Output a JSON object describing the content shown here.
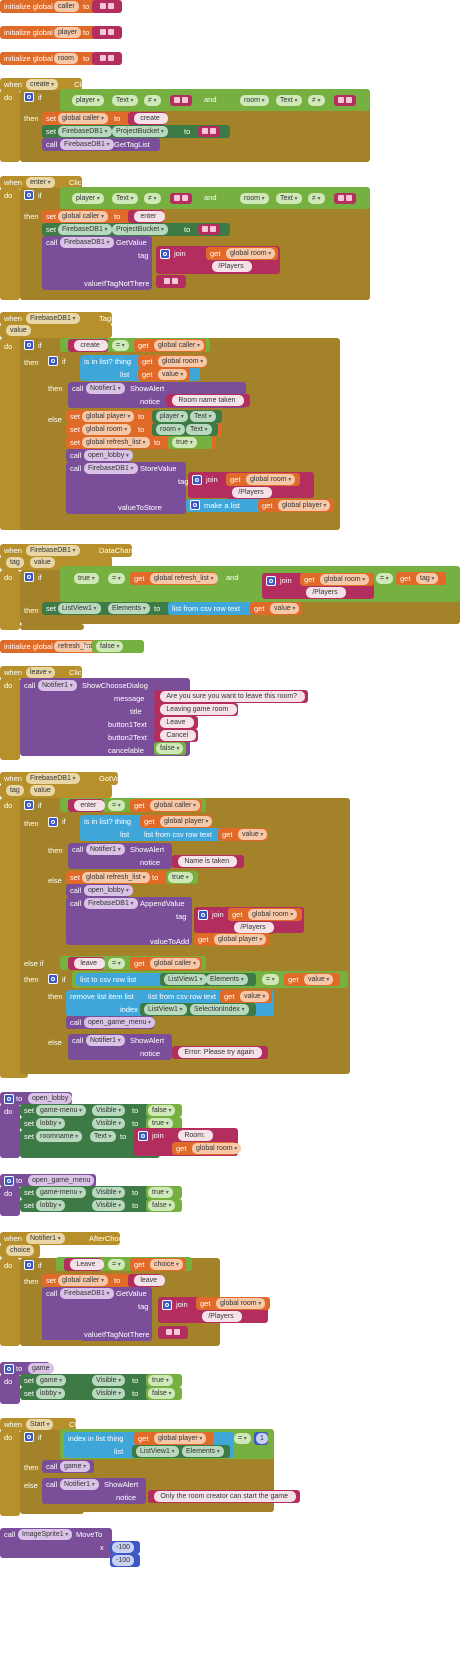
{
  "colors": {
    "event": "#b8902b",
    "variable": "#e06a28",
    "logic": "#76b041",
    "text": "#b32d5e",
    "component": "#3e7a46",
    "procedure": "#7b4e9a",
    "control": "#a3822a",
    "list": "#3fa6d9",
    "number": "#3d58c4"
  },
  "globals": {
    "init": "initialize global",
    "to": "to",
    "caller": "caller",
    "player": "player",
    "room": "room",
    "refresh_list": "refresh_list",
    "refresh_value": "false"
  },
  "kw": {
    "when": "when",
    "do": "do",
    "if": "if",
    "then": "then",
    "else": "else",
    "else_if": "else if",
    "set": "set",
    "call": "call",
    "get": "get",
    "to": "to",
    "and": "and",
    "join": "join",
    "neq": "≠",
    "eq": "=",
    "true": "true",
    "false": "false",
    "click": "Click",
    "is_in_list": "is in list? thing",
    "list": "list",
    "list_from_csv": "list from csv row  text",
    "list_to_csv": "list to csv row  list",
    "make_a_list": "make a list",
    "remove_list_item": "remove list item  list",
    "index": "index",
    "index_in_list": "index in list  thing",
    "tag": "tag",
    "value": "value",
    "valueIfTagNotThere": "valueIfTagNotThere",
    "valueToStore": "valueToStore",
    "valueToAdd": "valueToAdd",
    "notice": "notice",
    "visible": "Visible",
    "text": "Text",
    "elements": "Elements",
    "selection_index": "SelectionIndex",
    "x": "x",
    "y": "y"
  },
  "names": {
    "create": "create",
    "enter": "enter",
    "leave": "leave",
    "start": "Start",
    "firebase": "FirebaseDB1",
    "notifier": "Notifier1",
    "listview": "ListView1",
    "game_menu": "game-menu",
    "lobby": "lobby",
    "roomname": "roomname",
    "game": "game",
    "image_sprite": "ImageSprite1",
    "player_tb": "player",
    "room_tb": "room",
    "project_bucket": "ProjectBucket",
    "choice": "choice",
    "tag_param": "tag",
    "value_param": "value"
  },
  "methods": {
    "get_tag_list": "GetTagList",
    "get_value": "GetValue",
    "tag_list": "TagList",
    "show_alert": "ShowAlert",
    "store_value": "StoreValue",
    "data_changed": "DataChanged",
    "show_choose_dialog": "ShowChooseDialog",
    "got_value": "GotValue",
    "append_value": "AppendValue",
    "after_choosing": "AfterChoosing",
    "move_to": "MoveTo"
  },
  "vars": {
    "global_caller": "global caller",
    "global_room": "global room",
    "global_player": "global player",
    "global_refresh_list": "global refresh_list",
    "value": "value",
    "tag": "tag",
    "choice": "choice"
  },
  "strings": {
    "players_path": "/Players",
    "room_taken": "Room name taken",
    "leave_message": "Are you sure you want to leave this room?",
    "leaving_title": "Leaving game room",
    "leave_btn": "Leave",
    "cancel_btn": "Cancel",
    "name_taken": "Name is taken",
    "error_try": "Error: Please try again",
    "room_prefix": "Room: ",
    "only_creator": "Only the room creator can start the game"
  },
  "dialog_labels": {
    "message": "message",
    "title": "title",
    "button1": "button1Text",
    "button2": "button2Text",
    "cancelable": "cancelable"
  },
  "procedures": {
    "to": "to",
    "open_lobby": "open_lobby",
    "open_game_menu": "open_game_menu",
    "game": "game"
  },
  "numbers": {
    "one": "1",
    "neg100_x": "-100",
    "neg100_y": "-100"
  }
}
